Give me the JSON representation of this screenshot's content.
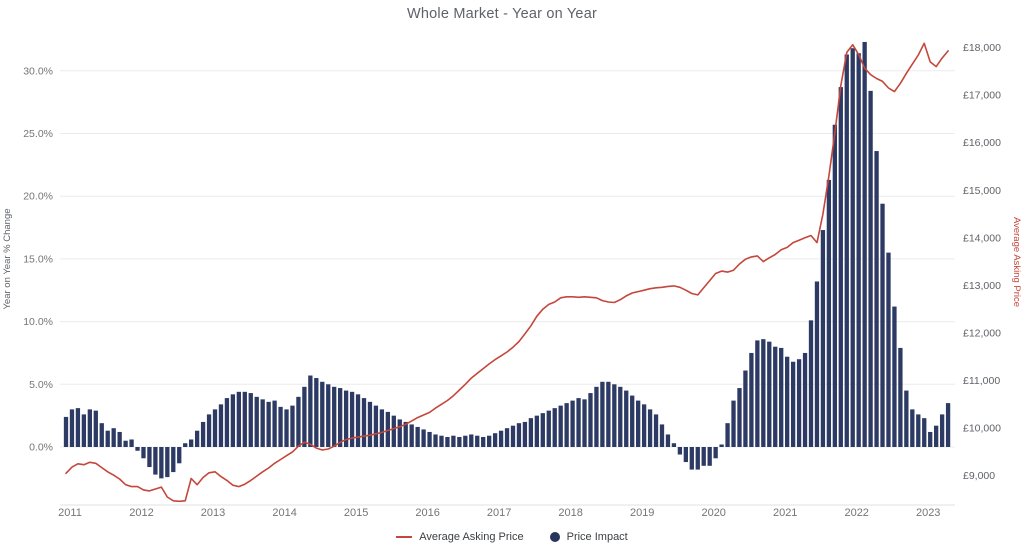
{
  "title": "Whole Market - Year on Year",
  "legend": {
    "line_label": "Average Asking Price",
    "bar_label": "Price Impact"
  },
  "colors": {
    "line": "#c4473c",
    "bar": "#2c3a64",
    "grid": "#ececec",
    "axis_text": "#757575",
    "right_axis_text": "#5f6368",
    "title_text": "#5f6368"
  },
  "chart_data": {
    "type": "combo (bar + line)",
    "x_start": "2011-01",
    "x_end": "2023-05",
    "x_tick_years": [
      2011,
      2012,
      2013,
      2014,
      2015,
      2016,
      2017,
      2018,
      2019,
      2020,
      2021,
      2022,
      2023
    ],
    "left_axis": {
      "title": "Year on Year % Change",
      "tick_values": [
        0,
        5,
        10,
        15,
        20,
        25,
        30
      ],
      "tick_labels": [
        "0.0%",
        "5.0%",
        "10.0%",
        "15.0%",
        "20.0%",
        "25.0%",
        "30.0%"
      ],
      "range_shown": [
        -3.5,
        33
      ]
    },
    "right_axis": {
      "title": "Average Asking Price",
      "tick_values": [
        9000,
        10000,
        11000,
        12000,
        13000,
        14000,
        15000,
        16000,
        17000,
        18000
      ],
      "tick_labels": [
        "£9,000",
        "£10,000",
        "£11,000",
        "£12,000",
        "£13,000",
        "£14,000",
        "£15,000",
        "£16,000",
        "£17,000",
        "£18,000"
      ]
    },
    "grid": "horizontal only",
    "legend_position": "bottom center",
    "series": [
      {
        "name": "Price Impact",
        "type": "bar",
        "axis": "left",
        "unit": "% year-on-year change",
        "values": [
          2.4,
          3.0,
          3.1,
          2.6,
          3.0,
          2.9,
          1.9,
          1.3,
          1.5,
          1.2,
          0.5,
          0.6,
          -0.3,
          -0.9,
          -1.6,
          -2.2,
          -2.5,
          -2.4,
          -2.0,
          -1.3,
          0.3,
          0.6,
          1.3,
          2.0,
          2.6,
          3.0,
          3.4,
          3.9,
          4.2,
          4.4,
          4.4,
          4.3,
          4.0,
          3.8,
          3.6,
          3.7,
          3.2,
          3.0,
          3.3,
          4.0,
          4.8,
          5.7,
          5.5,
          5.2,
          5.0,
          4.8,
          4.7,
          4.5,
          4.4,
          4.2,
          3.9,
          3.6,
          3.3,
          3.0,
          2.8,
          2.5,
          2.2,
          2.0,
          1.8,
          1.6,
          1.4,
          1.2,
          1.0,
          0.9,
          0.8,
          0.9,
          0.8,
          0.9,
          1.0,
          0.9,
          0.8,
          0.9,
          1.1,
          1.3,
          1.5,
          1.7,
          1.9,
          2.0,
          2.3,
          2.5,
          2.7,
          2.9,
          3.1,
          3.3,
          3.5,
          3.7,
          3.9,
          3.8,
          4.3,
          4.8,
          5.2,
          5.2,
          5.0,
          4.8,
          4.5,
          4.1,
          3.7,
          3.4,
          3.0,
          2.6,
          1.8,
          1.0,
          0.3,
          -0.6,
          -1.2,
          -1.8,
          -1.8,
          -1.5,
          -1.5,
          -0.9,
          0.2,
          1.9,
          3.7,
          4.7,
          6.1,
          7.5,
          8.5,
          8.6,
          8.4,
          8.0,
          7.9,
          7.2,
          6.8,
          7.0,
          7.5,
          10.1,
          13.2,
          17.3,
          21.3,
          25.7,
          28.7,
          31.3,
          31.8,
          31.4,
          32.3,
          28.4,
          23.6,
          19.4,
          15.5,
          11.2,
          7.9,
          4.5,
          3.0,
          2.6,
          2.3,
          1.2,
          1.7,
          2.6,
          3.5
        ]
      },
      {
        "name": "Average Asking Price",
        "type": "line",
        "axis": "right",
        "unit": "GBP",
        "values": [
          9050,
          9180,
          9250,
          9230,
          9280,
          9260,
          9170,
          9080,
          9010,
          8930,
          8810,
          8770,
          8770,
          8700,
          8680,
          8720,
          8760,
          8550,
          8470,
          8460,
          8470,
          8940,
          8810,
          8960,
          9060,
          9080,
          8980,
          8900,
          8800,
          8770,
          8820,
          8900,
          8990,
          9080,
          9160,
          9260,
          9340,
          9420,
          9500,
          9620,
          9700,
          9660,
          9580,
          9540,
          9560,
          9620,
          9700,
          9760,
          9790,
          9810,
          9830,
          9850,
          9880,
          9910,
          9950,
          9990,
          10030,
          10080,
          10150,
          10220,
          10275,
          10330,
          10420,
          10500,
          10580,
          10680,
          10800,
          10920,
          11050,
          11150,
          11250,
          11350,
          11440,
          11520,
          11600,
          11700,
          11820,
          11980,
          12150,
          12350,
          12500,
          12600,
          12650,
          12740,
          12760,
          12760,
          12750,
          12760,
          12750,
          12740,
          12680,
          12650,
          12640,
          12700,
          12780,
          12840,
          12870,
          12900,
          12930,
          12950,
          12960,
          12980,
          12990,
          12960,
          12900,
          12830,
          12800,
          12950,
          13100,
          13250,
          13300,
          13280,
          13320,
          13450,
          13550,
          13600,
          13620,
          13500,
          13580,
          13650,
          13750,
          13800,
          13900,
          13950,
          14000,
          14050,
          13900,
          14500,
          15300,
          16200,
          17200,
          17900,
          18060,
          17850,
          17570,
          17430,
          17350,
          17290,
          17150,
          17075,
          17250,
          17460,
          17650,
          17845,
          18090,
          17700,
          17600,
          17780,
          17930
        ]
      }
    ]
  }
}
